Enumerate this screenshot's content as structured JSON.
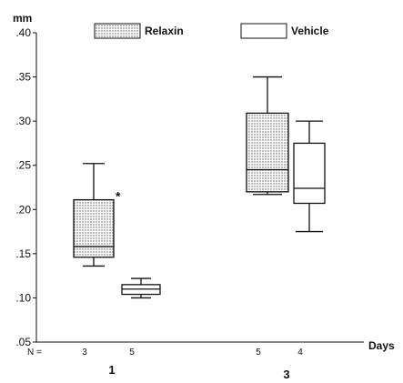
{
  "chart_data": {
    "type": "boxplot",
    "ylabel": "mm",
    "xlabel": "Days",
    "ylim": [
      0.05,
      0.4
    ],
    "yticks": [
      {
        "value": 0.05,
        "label": ".05"
      },
      {
        "value": 0.1,
        "label": ".10"
      },
      {
        "value": 0.15,
        "label": ".15"
      },
      {
        "value": 0.2,
        "label": ".20"
      },
      {
        "value": 0.25,
        "label": ".25"
      },
      {
        "value": 0.3,
        "label": ".30"
      },
      {
        "value": 0.35,
        "label": ".35"
      },
      {
        "value": 0.4,
        "label": ".40"
      }
    ],
    "n_prefix": "N =",
    "categories": [
      "1",
      "3"
    ],
    "legend": [
      {
        "name": "Relaxin",
        "pattern": "dotted"
      },
      {
        "name": "Vehicle",
        "pattern": "plain"
      }
    ],
    "boxes": [
      {
        "group": "1",
        "series": "Relaxin",
        "n": "3",
        "min": 0.136,
        "q1": 0.146,
        "median": 0.158,
        "q3": 0.211,
        "max": 0.252,
        "annotation": "*"
      },
      {
        "group": "1",
        "series": "Vehicle",
        "n": "5",
        "min": 0.1,
        "q1": 0.104,
        "median": 0.11,
        "q3": 0.115,
        "max": 0.122
      },
      {
        "group": "3",
        "series": "Relaxin",
        "n": "5",
        "min": 0.217,
        "q1": 0.22,
        "median": 0.245,
        "q3": 0.309,
        "max": 0.35
      },
      {
        "group": "3",
        "series": "Vehicle",
        "n": "4",
        "min": 0.175,
        "q1": 0.207,
        "median": 0.224,
        "q3": 0.275,
        "max": 0.3
      }
    ],
    "colors": {
      "ink": "#111111",
      "dot": "#555555",
      "fill": "#ffffff"
    }
  }
}
